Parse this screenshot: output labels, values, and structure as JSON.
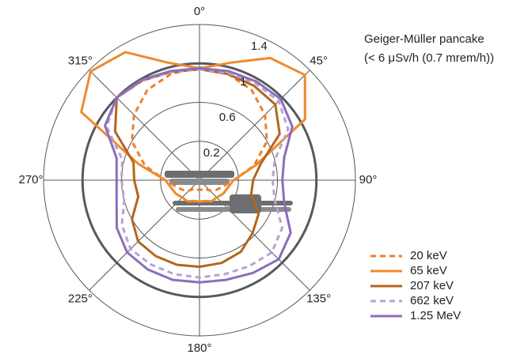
{
  "chart_data": {
    "type": "polar-line",
    "annotation": [
      "Geiger-Müller pancake",
      "(< 6 μSv/h (0.7 mrem/h))"
    ],
    "theta": [
      0,
      15,
      30,
      45,
      60,
      75,
      90,
      105,
      120,
      135,
      150,
      165,
      180,
      195,
      210,
      225,
      240,
      255,
      270,
      285,
      300,
      315,
      330,
      345
    ],
    "rlim": [
      -0.2,
      1.4
    ],
    "rticks": [
      0.2,
      0.6,
      1.0,
      1.4
    ],
    "highlight_ring": 1.0,
    "thetaticks": [
      {
        "value": 0,
        "label": "0°"
      },
      {
        "value": 45,
        "label": "45°"
      },
      {
        "value": 90,
        "label": "90°"
      },
      {
        "value": 135,
        "label": "135°"
      },
      {
        "value": 180,
        "label": "180°"
      },
      {
        "value": 225,
        "label": "225°"
      },
      {
        "value": 270,
        "label": "270°"
      },
      {
        "value": 315,
        "label": "315°"
      }
    ],
    "legend": "lower right",
    "series": [
      {
        "name": "20 keV",
        "color": "#f07f2a",
        "dashed": true,
        "values": [
          0.96,
          0.93,
          0.87,
          0.75,
          0.6,
          0.38,
          0.15,
          0.05,
          0,
          -0.05,
          -0.1,
          -0.1,
          -0.1,
          -0.1,
          -0.1,
          -0.05,
          0,
          0.05,
          0.15,
          0.38,
          0.6,
          0.75,
          0.87,
          0.93
        ]
      },
      {
        "name": "65 keV",
        "color": "#f08a2c",
        "dashed": false,
        "values": [
          0.95,
          1.05,
          1.25,
          1.33,
          1.05,
          0.4,
          0.15,
          0.1,
          0.08,
          0.05,
          0.05,
          0.02,
          0.02,
          0.02,
          0.05,
          0.05,
          0.08,
          0.1,
          0.15,
          0.45,
          1.2,
          1.38,
          1.32,
          1.05
        ]
      },
      {
        "name": "207 keV",
        "color": "#b5651d",
        "dashed": false,
        "values": [
          0.94,
          0.93,
          0.92,
          0.9,
          0.75,
          0.45,
          0.35,
          0.35,
          0.5,
          0.57,
          0.65,
          0.68,
          0.69,
          0.7,
          0.7,
          0.69,
          0.6,
          0.45,
          0.47,
          0.5,
          0.8,
          1.0,
          0.98,
          0.95
        ]
      },
      {
        "name": "662 keV",
        "color": "#b4a3d6",
        "dashed": true,
        "values": [
          0.94,
          0.94,
          0.95,
          0.95,
          0.85,
          0.6,
          0.55,
          0.6,
          0.78,
          0.85,
          0.82,
          0.8,
          0.8,
          0.8,
          0.8,
          0.8,
          0.72,
          0.6,
          0.6,
          0.62,
          0.9,
          1.0,
          0.98,
          0.95
        ]
      },
      {
        "name": "1.25 MeV",
        "color": "#8b6dbb",
        "dashed": false,
        "values": [
          0.95,
          0.96,
          0.97,
          0.98,
          0.9,
          0.7,
          0.65,
          0.7,
          0.88,
          0.95,
          0.9,
          0.86,
          0.85,
          0.86,
          0.86,
          0.85,
          0.78,
          0.68,
          0.65,
          0.68,
          0.92,
          1.0,
          0.99,
          0.96
        ]
      }
    ]
  }
}
